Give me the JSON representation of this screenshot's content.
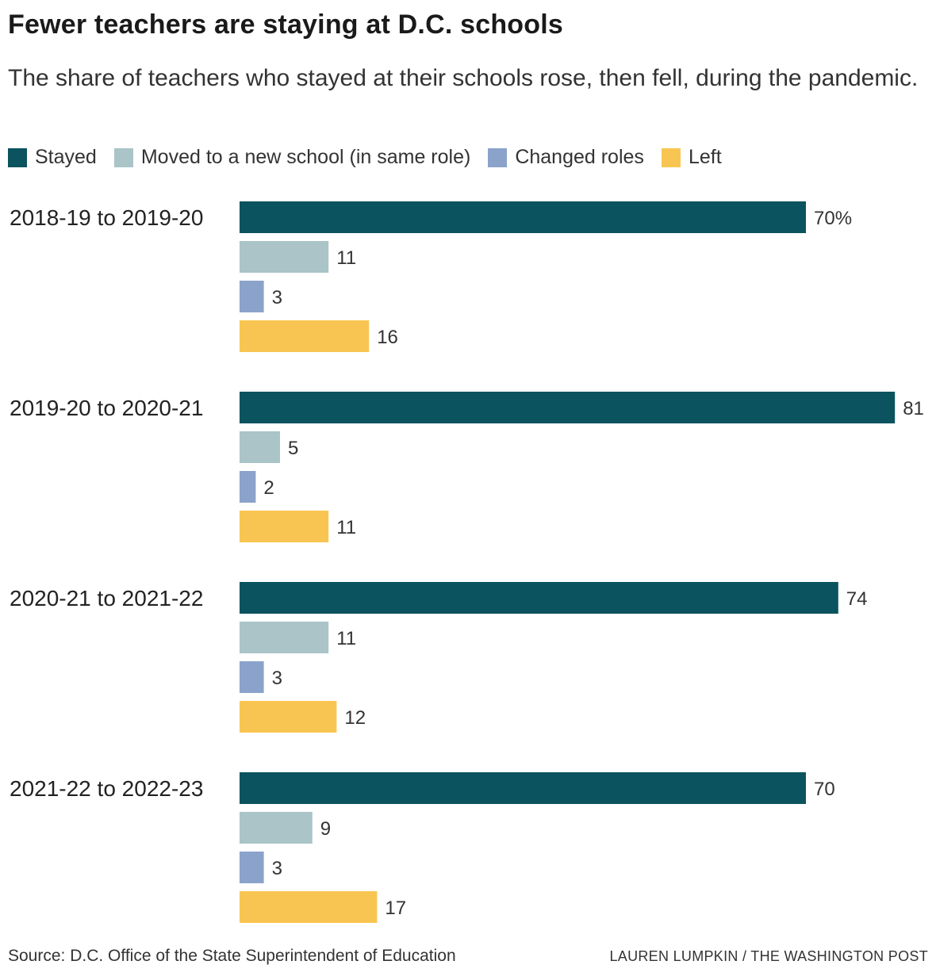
{
  "title": "Fewer teachers are staying at D.C. schools",
  "subtitle": "The share of teachers who stayed at their schools rose, then fell, during the pandemic.",
  "legend": [
    {
      "label": "Stayed",
      "color": "#0b535e"
    },
    {
      "label": "Moved to a new school (in same role)",
      "color": "#aac4c8"
    },
    {
      "label": "Changed roles",
      "color": "#8ba3cb"
    },
    {
      "label": "Left",
      "color": "#f9c552"
    }
  ],
  "footer": {
    "source": "Source: D.C. Office of the State Superintendent of Education",
    "credit": "LAUREN LUMPKIN / THE WASHINGTON POST"
  },
  "chart_data": {
    "type": "bar",
    "orientation": "horizontal",
    "categories": [
      "2018-19 to 2019-20",
      "2019-20 to 2020-21",
      "2020-21 to 2021-22",
      "2021-22 to 2022-23"
    ],
    "series": [
      {
        "name": "Stayed",
        "color": "#0b535e",
        "values": [
          70,
          81,
          74,
          70
        ]
      },
      {
        "name": "Moved to a new school (in same role)",
        "color": "#aac4c8",
        "values": [
          11,
          5,
          11,
          9
        ]
      },
      {
        "name": "Changed roles",
        "color": "#8ba3cb",
        "values": [
          3,
          2,
          3,
          3
        ]
      },
      {
        "name": "Left",
        "color": "#f9c552",
        "values": [
          16,
          11,
          12,
          17
        ]
      }
    ],
    "value_suffix_first": "%",
    "xlim": [
      0,
      81
    ],
    "grid": false,
    "legend_position": "top-left"
  }
}
